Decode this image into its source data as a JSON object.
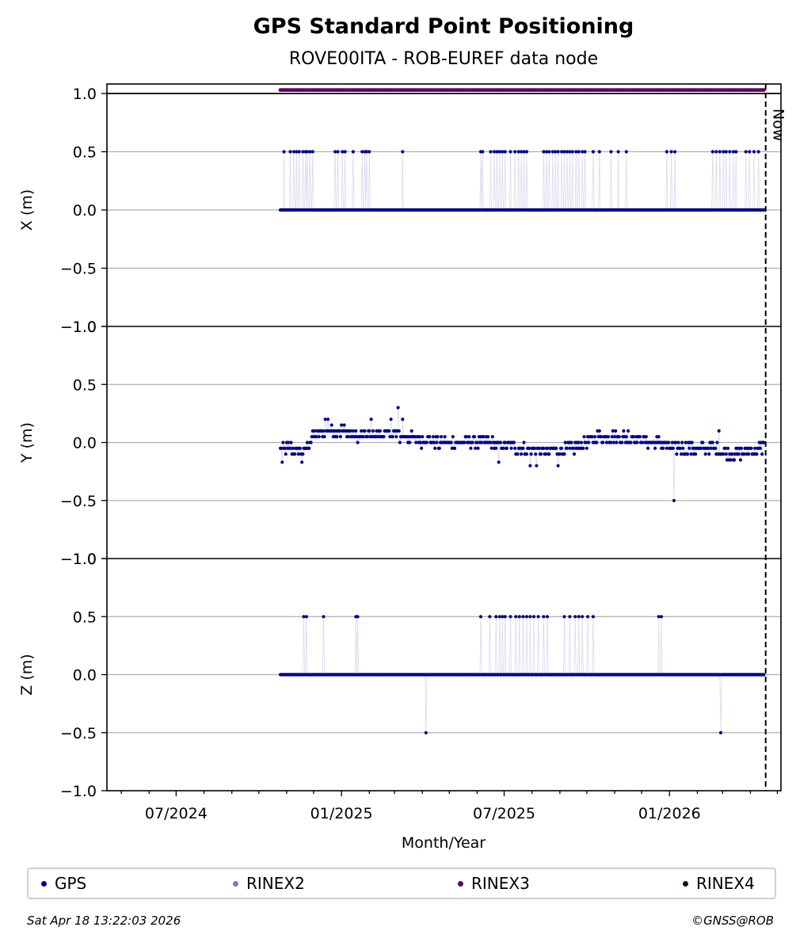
{
  "header": {
    "title": "GPS Standard Point Positioning",
    "subtitle": "ROVE00ITA - ROB-EUREF data node"
  },
  "footer": {
    "timestamp": "Sat Apr 18 13:22:03 2026",
    "copyright": "©GNSS@ROB"
  },
  "now_label": "Now",
  "colors": {
    "GPS": "#00008b",
    "RINEX2": "#7b7bc7",
    "RINEX3": "#5e005e",
    "RINEX4": "#2a0a10"
  },
  "legend": [
    {
      "name": "GPS",
      "color": "#00008b"
    },
    {
      "name": "RINEX2",
      "color": "#7b7bc7"
    },
    {
      "name": "RINEX3",
      "color": "#5e005e"
    },
    {
      "name": "RINEX4",
      "color": "#2a0a10"
    }
  ],
  "chart_data": {
    "type": "scatter",
    "xlabel": "Month/Year",
    "x_ticks": [
      "07/2024",
      "01/2025",
      "07/2025",
      "01/2026"
    ],
    "x_range": [
      "2024-04-15",
      "2026-05-05"
    ],
    "now_date": "2026-04-18",
    "grid": true,
    "legend_position": "bottom",
    "rinex3_availability": {
      "start": "2024-10-25",
      "end": "2026-04-17",
      "y": 1.03
    },
    "panels": [
      {
        "ylabel": "X (m)",
        "ylim": [
          -1.0,
          1.0
        ],
        "yticks": [
          "1.0",
          "0.5",
          "0.0",
          "−0.5",
          "−1.0"
        ],
        "series_name": "GPS",
        "data_start": "2024-10-25",
        "data_end": "2026-04-16",
        "baseline": 0.0,
        "outliers": [
          {
            "y": 0.5,
            "dates": [
              "2024-10-29",
              "2024-11-05",
              "2024-11-09",
              "2024-11-12",
              "2024-11-15",
              "2024-11-19",
              "2024-11-22",
              "2024-11-24",
              "2024-11-27",
              "2024-11-30",
              "2024-12-25",
              "2024-12-28",
              "2025-01-02",
              "2025-01-05",
              "2025-01-14",
              "2025-01-24",
              "2025-01-27",
              "2025-01-29",
              "2025-02-01",
              "2025-03-10",
              "2025-06-05",
              "2025-06-07",
              "2025-06-16",
              "2025-06-20",
              "2025-06-23",
              "2025-06-26",
              "2025-06-29",
              "2025-07-02",
              "2025-07-08",
              "2025-07-13",
              "2025-07-17",
              "2025-07-20",
              "2025-07-23",
              "2025-07-26",
              "2025-08-14",
              "2025-08-17",
              "2025-08-20",
              "2025-08-24",
              "2025-08-27",
              "2025-08-30",
              "2025-09-03",
              "2025-09-06",
              "2025-09-09",
              "2025-09-12",
              "2025-09-15",
              "2025-09-19",
              "2025-09-22",
              "2025-09-26",
              "2025-09-29",
              "2025-10-08",
              "2025-10-15",
              "2025-10-28",
              "2025-11-05",
              "2025-11-14",
              "2025-12-29",
              "2026-01-03",
              "2026-01-07",
              "2026-02-18",
              "2026-02-22",
              "2026-02-26",
              "2026-03-02",
              "2026-03-05",
              "2026-03-09",
              "2026-03-13",
              "2026-03-16",
              "2026-03-27",
              "2026-03-31",
              "2026-04-05",
              "2026-04-10"
            ]
          }
        ],
        "gaps": [
          "2026-04-14"
        ]
      },
      {
        "ylabel": "Y (m)",
        "ylim": [
          -1.0,
          1.0
        ],
        "yticks": [
          "1.0",
          "0.5",
          "0.0",
          "−0.5",
          "−1.0"
        ],
        "series_name": "GPS",
        "data_start": "2024-10-25",
        "data_end": "2026-04-16",
        "profile": [
          {
            "date": "2024-10-25",
            "y": -0.05
          },
          {
            "date": "2024-11-05",
            "y": -0.05
          },
          {
            "date": "2024-11-20",
            "y": -0.08
          },
          {
            "date": "2024-12-01",
            "y": 0.05
          },
          {
            "date": "2024-12-15",
            "y": 0.1
          },
          {
            "date": "2025-01-01",
            "y": 0.1
          },
          {
            "date": "2025-01-20",
            "y": 0.05
          },
          {
            "date": "2025-02-15",
            "y": 0.08
          },
          {
            "date": "2025-03-15",
            "y": 0.05
          },
          {
            "date": "2025-04-15",
            "y": 0.0
          },
          {
            "date": "2025-05-15",
            "y": 0.0
          },
          {
            "date": "2025-06-15",
            "y": 0.0
          },
          {
            "date": "2025-07-15",
            "y": -0.05
          },
          {
            "date": "2025-08-15",
            "y": -0.08
          },
          {
            "date": "2025-09-15",
            "y": -0.05
          },
          {
            "date": "2025-10-15",
            "y": 0.05
          },
          {
            "date": "2025-11-15",
            "y": 0.05
          },
          {
            "date": "2025-12-15",
            "y": 0.0
          },
          {
            "date": "2026-01-15",
            "y": -0.05
          },
          {
            "date": "2026-02-15",
            "y": -0.05
          },
          {
            "date": "2026-03-15",
            "y": -0.1
          },
          {
            "date": "2026-04-16",
            "y": -0.05
          }
        ],
        "outliers": [
          {
            "date": "2024-10-27",
            "y": -0.17
          },
          {
            "date": "2024-11-18",
            "y": -0.17
          },
          {
            "date": "2024-12-14",
            "y": 0.2
          },
          {
            "date": "2024-12-17",
            "y": 0.2
          },
          {
            "date": "2025-02-03",
            "y": 0.2
          },
          {
            "date": "2025-02-25",
            "y": 0.2
          },
          {
            "date": "2025-03-05",
            "y": 0.3
          },
          {
            "date": "2025-03-10",
            "y": 0.2
          },
          {
            "date": "2025-06-25",
            "y": -0.17
          },
          {
            "date": "2025-07-30",
            "y": -0.2
          },
          {
            "date": "2025-08-06",
            "y": -0.2
          },
          {
            "date": "2025-08-30",
            "y": -0.2
          },
          {
            "date": "2026-01-06",
            "y": -0.5
          },
          {
            "date": "2026-02-25",
            "y": 0.1
          },
          {
            "date": "2026-04-16",
            "y": 0.0
          }
        ]
      },
      {
        "ylabel": "Z (m)",
        "ylim": [
          -1.0,
          1.0
        ],
        "yticks": [
          "1.0",
          "0.5",
          "0.0",
          "−0.5",
          "−1.0"
        ],
        "series_name": "GPS",
        "data_start": "2024-10-25",
        "data_end": "2026-04-16",
        "baseline": 0.0,
        "outliers": [
          {
            "y": 0.5,
            "dates": [
              "2024-11-20",
              "2024-11-23",
              "2024-12-12",
              "2025-01-17",
              "2025-01-19",
              "2025-06-05",
              "2025-06-15",
              "2025-06-22",
              "2025-06-26",
              "2025-06-29",
              "2025-07-02",
              "2025-07-08",
              "2025-07-14",
              "2025-07-18",
              "2025-07-22",
              "2025-07-26",
              "2025-07-30",
              "2025-08-03",
              "2025-08-08",
              "2025-08-14",
              "2025-08-18",
              "2025-09-06",
              "2025-09-12",
              "2025-09-18",
              "2025-09-22",
              "2025-09-26",
              "2025-10-02",
              "2025-10-08",
              "2025-12-20",
              "2025-12-23"
            ]
          },
          {
            "y": -0.5,
            "dates": [
              "2025-04-05",
              "2026-02-27"
            ]
          }
        ]
      }
    ]
  }
}
